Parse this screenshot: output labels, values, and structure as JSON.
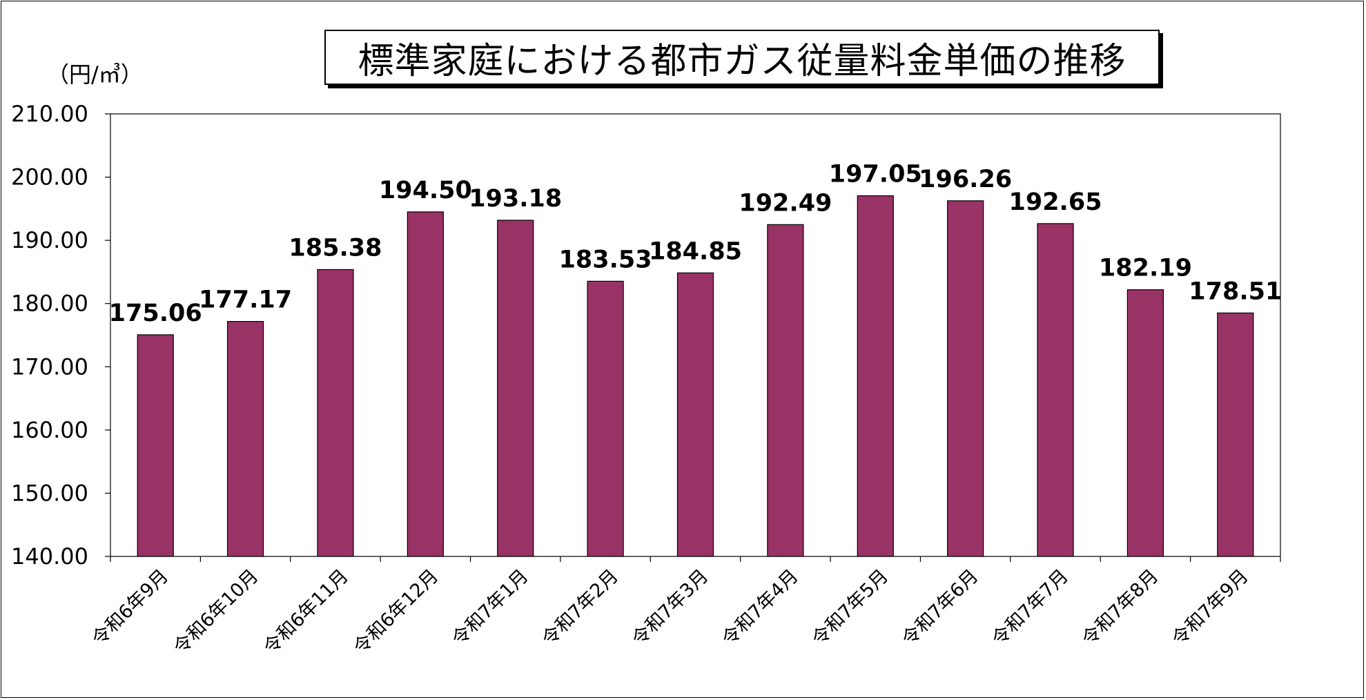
{
  "chart_data": {
    "type": "bar",
    "title": "標準家庭における都市ガス従量料金単価の推移",
    "unit_label": "（円/㎥）",
    "categories": [
      "令和6年9月",
      "令和6年10月",
      "令和6年11月",
      "令和6年12月",
      "令和7年1月",
      "令和7年2月",
      "令和7年3月",
      "令和7年4月",
      "令和7年5月",
      "令和7年6月",
      "令和7年7月",
      "令和7年8月",
      "令和7年9月"
    ],
    "values": [
      175.06,
      177.17,
      185.38,
      194.5,
      193.18,
      183.53,
      184.85,
      192.49,
      197.05,
      196.26,
      192.65,
      182.19,
      178.51
    ],
    "data_labels": [
      "175.06",
      "177.17",
      "185.38",
      "194.50",
      "193.18",
      "183.53",
      "184.85",
      "192.49",
      "197.05",
      "196.26",
      "192.65",
      "182.19",
      "178.51"
    ],
    "ylim": [
      140,
      210
    ],
    "y_ticks": [
      "140.00",
      "150.00",
      "160.00",
      "170.00",
      "180.00",
      "190.00",
      "200.00",
      "210.00"
    ],
    "grid": false,
    "legend": "none",
    "bar_color": "#993366"
  }
}
